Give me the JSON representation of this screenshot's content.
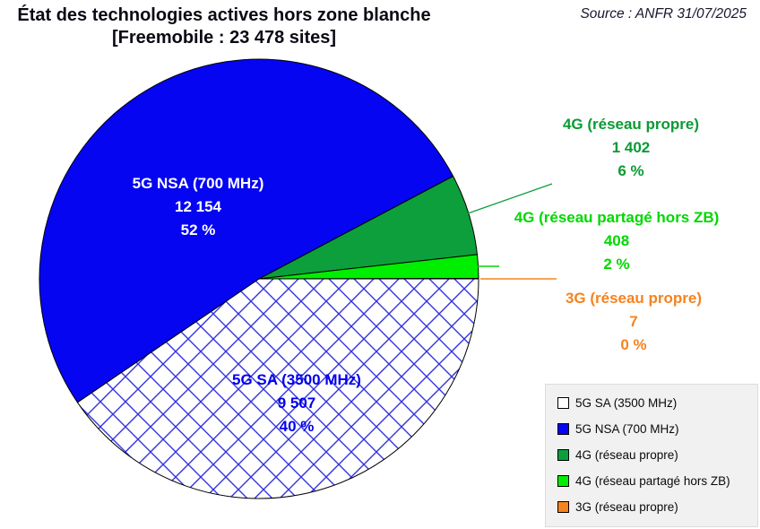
{
  "title": {
    "line1": "État des technologies actives hors zone blanche",
    "line2": "[Freemobile : 23 478 sites]"
  },
  "source": "Source : ANFR 31/07/2025",
  "chart_data": {
    "type": "pie",
    "title": "État des technologies actives hors zone blanche [Freemobile : 23 478 sites]",
    "source": "Source : ANFR 31/07/2025",
    "total_sites": 23478,
    "total_sites_label": "23 478 sites",
    "legend_position": "bottom-right",
    "start_angle": "east",
    "direction": "clockwise",
    "slices": [
      {
        "label": "5G SA (3500 MHz)",
        "value": 9507,
        "value_label": "9 507",
        "pct": 40,
        "pct_label": "40 %",
        "fill": "hatch",
        "hatch_color": "#3232e0",
        "swatch_color": "#ffffff",
        "text_color": "#0000ee"
      },
      {
        "label": "5G NSA (700 MHz)",
        "value": 12154,
        "value_label": "12 154",
        "pct": 52,
        "pct_label": "52 %",
        "fill": "#0505f2",
        "swatch_color": "#0505f2",
        "text_color": "#ffffff"
      },
      {
        "label": "4G (réseau propre)",
        "value": 1402,
        "value_label": "1 402",
        "pct": 6,
        "pct_label": "6 %",
        "fill": "#0d9f3c",
        "swatch_color": "#0d9f3c",
        "text_color": "#0a9a35"
      },
      {
        "label": "4G (réseau partagé hors ZB)",
        "value": 408,
        "value_label": "408",
        "pct": 2,
        "pct_label": "2 %",
        "fill": "#00ee00",
        "swatch_color": "#00ee00",
        "text_color": "#00d800"
      },
      {
        "label": "3G (réseau propre)",
        "value": 7,
        "value_label": "7",
        "pct": 0,
        "pct_label": "0 %",
        "fill": "#f5831f",
        "swatch_color": "#f5831f",
        "text_color": "#f5831f"
      }
    ]
  }
}
